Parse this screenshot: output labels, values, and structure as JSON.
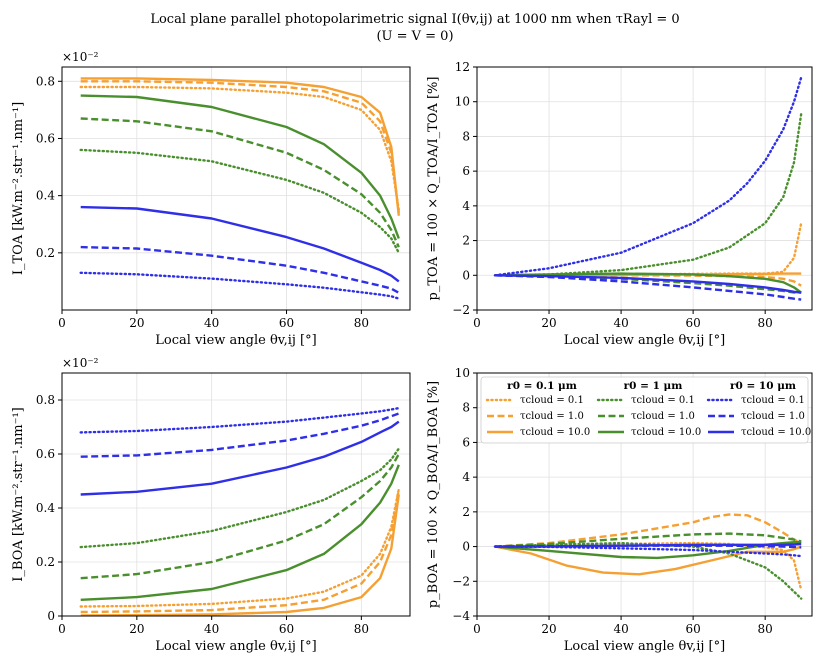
{
  "figure": {
    "title_line1": "Local plane parallel photopolarimetric signal I(θv,ij) at 1000 nm when τRayl = 0",
    "title_line2": "(U = V = 0)"
  },
  "colors": {
    "r0.1": "#f5a033",
    "r1": "#4a8f2e",
    "r10": "#2f2fe8",
    "grid": "#e0e0e0"
  },
  "legend": {
    "headers": [
      "r0 = 0.1 μm",
      "r0 = 1 μm",
      "r0 = 10 μm"
    ],
    "labels": [
      "τcloud = 0.1",
      "τcloud = 1.0",
      "τcloud = 10.0"
    ]
  },
  "chart_data": [
    {
      "id": "I_TOA",
      "type": "line",
      "xlabel": "Local view angle θv,ij [°]",
      "ylabel": "I_TOA [kW.m⁻².str⁻¹.nm⁻¹]",
      "offset_text": "×10⁻²",
      "xlim": [
        0,
        93
      ],
      "ylim": [
        0.0,
        0.85
      ],
      "xticks": [
        0,
        20,
        40,
        60,
        80
      ],
      "yticks": [
        0.2,
        0.4,
        0.6,
        0.8
      ],
      "series": [
        {
          "name": "r0=0.1, τ=0.1",
          "color_key": "r0.1",
          "dash": "dot",
          "x": [
            5,
            20,
            40,
            60,
            70,
            80,
            85,
            88,
            90
          ],
          "y": [
            0.78,
            0.78,
            0.775,
            0.76,
            0.745,
            0.7,
            0.63,
            0.52,
            0.35
          ]
        },
        {
          "name": "r0=0.1, τ=1.0",
          "color_key": "r0.1",
          "dash": "dash",
          "x": [
            5,
            20,
            40,
            60,
            70,
            80,
            85,
            88,
            90
          ],
          "y": [
            0.8,
            0.8,
            0.795,
            0.78,
            0.765,
            0.725,
            0.66,
            0.55,
            0.34
          ]
        },
        {
          "name": "r0=0.1, τ=10.0",
          "color_key": "r0.1",
          "dash": "solid",
          "x": [
            5,
            20,
            40,
            60,
            70,
            80,
            85,
            88,
            90
          ],
          "y": [
            0.81,
            0.81,
            0.805,
            0.795,
            0.78,
            0.745,
            0.69,
            0.57,
            0.33
          ]
        },
        {
          "name": "r0=1, τ=0.1",
          "color_key": "r1",
          "dash": "dot",
          "x": [
            5,
            20,
            40,
            60,
            70,
            80,
            85,
            88,
            90
          ],
          "y": [
            0.56,
            0.55,
            0.52,
            0.455,
            0.41,
            0.34,
            0.29,
            0.25,
            0.2
          ]
        },
        {
          "name": "r0=1, τ=1.0",
          "color_key": "r1",
          "dash": "dash",
          "x": [
            5,
            20,
            40,
            60,
            70,
            80,
            85,
            88,
            90
          ],
          "y": [
            0.67,
            0.66,
            0.625,
            0.55,
            0.49,
            0.405,
            0.34,
            0.28,
            0.22
          ]
        },
        {
          "name": "r0=1, τ=10.0",
          "color_key": "r1",
          "dash": "solid",
          "x": [
            5,
            20,
            40,
            60,
            70,
            80,
            85,
            88,
            90
          ],
          "y": [
            0.75,
            0.745,
            0.71,
            0.64,
            0.58,
            0.48,
            0.4,
            0.32,
            0.25
          ]
        },
        {
          "name": "r0=10, τ=0.1",
          "color_key": "r10",
          "dash": "dot",
          "x": [
            5,
            20,
            40,
            60,
            70,
            80,
            85,
            88,
            90
          ],
          "y": [
            0.13,
            0.125,
            0.11,
            0.09,
            0.078,
            0.062,
            0.054,
            0.048,
            0.04
          ]
        },
        {
          "name": "r0=10, τ=1.0",
          "color_key": "r10",
          "dash": "dash",
          "x": [
            5,
            20,
            40,
            60,
            70,
            80,
            85,
            88,
            90
          ],
          "y": [
            0.22,
            0.215,
            0.19,
            0.155,
            0.13,
            0.1,
            0.085,
            0.075,
            0.06
          ]
        },
        {
          "name": "r0=10, τ=10.0",
          "color_key": "r10",
          "dash": "solid",
          "x": [
            5,
            20,
            40,
            60,
            70,
            80,
            85,
            88,
            90
          ],
          "y": [
            0.36,
            0.355,
            0.32,
            0.255,
            0.215,
            0.165,
            0.14,
            0.12,
            0.1
          ]
        }
      ]
    },
    {
      "id": "p_TOA",
      "type": "line",
      "xlabel": "Local view angle θv,ij [°]",
      "ylabel": "p_TOA = 100 × Q_TOA/I_TOA [%]",
      "xlim": [
        0,
        93
      ],
      "ylim": [
        -2,
        12
      ],
      "xticks": [
        0,
        20,
        40,
        60,
        80
      ],
      "yticks": [
        -2,
        0,
        2,
        4,
        6,
        8,
        10,
        12
      ],
      "series": [
        {
          "name": "r0=0.1, τ=0.1",
          "color_key": "r0.1",
          "dash": "dot",
          "x": [
            5,
            20,
            40,
            60,
            70,
            80,
            85,
            88,
            90
          ],
          "y": [
            0,
            0.02,
            0.05,
            0.08,
            0.1,
            0.1,
            0.2,
            1.0,
            3.0
          ]
        },
        {
          "name": "r0=0.1, τ=1.0",
          "color_key": "r0.1",
          "dash": "dash",
          "x": [
            5,
            20,
            40,
            60,
            70,
            80,
            85,
            88,
            90
          ],
          "y": [
            0,
            0,
            0,
            -0.02,
            -0.05,
            -0.1,
            -0.2,
            -0.35,
            -0.6
          ]
        },
        {
          "name": "r0=0.1, τ=10.0",
          "color_key": "r0.1",
          "dash": "solid",
          "x": [
            5,
            20,
            40,
            60,
            70,
            80,
            85,
            88,
            90
          ],
          "y": [
            0,
            0,
            0.03,
            0.05,
            0.06,
            0.08,
            0.1,
            0.1,
            0.1
          ]
        },
        {
          "name": "r0=1, τ=0.1",
          "color_key": "r1",
          "dash": "dot",
          "x": [
            5,
            20,
            40,
            60,
            70,
            80,
            85,
            88,
            90
          ],
          "y": [
            0,
            0.05,
            0.3,
            0.9,
            1.6,
            3.0,
            4.5,
            6.5,
            9.3
          ]
        },
        {
          "name": "r0=1, τ=1.0",
          "color_key": "r1",
          "dash": "dash",
          "x": [
            5,
            20,
            40,
            60,
            70,
            80,
            85,
            88,
            90
          ],
          "y": [
            0,
            -0.05,
            -0.2,
            -0.45,
            -0.6,
            -0.8,
            -0.9,
            -1.0,
            -1.0
          ]
        },
        {
          "name": "r0=1, τ=10.0",
          "color_key": "r1",
          "dash": "solid",
          "x": [
            5,
            20,
            40,
            60,
            70,
            80,
            85,
            88,
            90
          ],
          "y": [
            0,
            0.05,
            0.1,
            0.05,
            -0.05,
            -0.2,
            -0.4,
            -0.7,
            -1.0
          ]
        },
        {
          "name": "r0=10, τ=0.1",
          "color_key": "r10",
          "dash": "dot",
          "x": [
            5,
            20,
            40,
            60,
            70,
            75,
            80,
            85,
            88,
            90
          ],
          "y": [
            0,
            0.4,
            1.3,
            3.0,
            4.3,
            5.3,
            6.6,
            8.4,
            10.0,
            11.4
          ]
        },
        {
          "name": "r0=10, τ=1.0",
          "color_key": "r10",
          "dash": "dash",
          "x": [
            5,
            20,
            40,
            60,
            70,
            80,
            85,
            88,
            90
          ],
          "y": [
            0,
            -0.1,
            -0.35,
            -0.7,
            -0.9,
            -1.1,
            -1.25,
            -1.35,
            -1.4
          ]
        },
        {
          "name": "r0=10, τ=10.0",
          "color_key": "r10",
          "dash": "solid",
          "x": [
            5,
            20,
            40,
            60,
            70,
            80,
            85,
            88,
            90
          ],
          "y": [
            0,
            -0.05,
            -0.15,
            -0.35,
            -0.5,
            -0.7,
            -0.85,
            -0.95,
            -1.0
          ]
        }
      ]
    },
    {
      "id": "I_BOA",
      "type": "line",
      "xlabel": "Local view angle θv,ij [°]",
      "ylabel": "I_BOA [kW.m⁻².str⁻¹.nm⁻¹]",
      "offset_text": "×10⁻²",
      "xlim": [
        0,
        93
      ],
      "ylim": [
        0.0,
        0.9
      ],
      "xticks": [
        0,
        20,
        40,
        60,
        80
      ],
      "yticks": [
        0.0,
        0.2,
        0.4,
        0.6,
        0.8
      ],
      "series": [
        {
          "name": "r0=0.1, τ=0.1",
          "color_key": "r0.1",
          "dash": "dot",
          "x": [
            5,
            20,
            40,
            60,
            70,
            80,
            85,
            88,
            90
          ],
          "y": [
            0.035,
            0.037,
            0.045,
            0.065,
            0.09,
            0.15,
            0.23,
            0.33,
            0.47
          ]
        },
        {
          "name": "r0=0.1, τ=1.0",
          "color_key": "r0.1",
          "dash": "dash",
          "x": [
            5,
            20,
            40,
            60,
            70,
            80,
            85,
            88,
            90
          ],
          "y": [
            0.015,
            0.017,
            0.022,
            0.04,
            0.06,
            0.12,
            0.2,
            0.3,
            0.47
          ]
        },
        {
          "name": "r0=0.1, τ=10.0",
          "color_key": "r0.1",
          "dash": "solid",
          "x": [
            5,
            20,
            40,
            60,
            70,
            80,
            85,
            88,
            90
          ],
          "y": [
            0.002,
            0.003,
            0.006,
            0.015,
            0.03,
            0.07,
            0.14,
            0.25,
            0.45
          ]
        },
        {
          "name": "r0=1, τ=0.1",
          "color_key": "r1",
          "dash": "dot",
          "x": [
            5,
            20,
            40,
            60,
            70,
            80,
            85,
            88,
            90
          ],
          "y": [
            0.255,
            0.27,
            0.315,
            0.385,
            0.43,
            0.5,
            0.54,
            0.58,
            0.62
          ]
        },
        {
          "name": "r0=1, τ=1.0",
          "color_key": "r1",
          "dash": "dash",
          "x": [
            5,
            20,
            40,
            60,
            70,
            80,
            85,
            88,
            90
          ],
          "y": [
            0.14,
            0.155,
            0.2,
            0.28,
            0.34,
            0.44,
            0.5,
            0.55,
            0.6
          ]
        },
        {
          "name": "r0=1, τ=10.0",
          "color_key": "r1",
          "dash": "solid",
          "x": [
            5,
            20,
            40,
            60,
            70,
            80,
            85,
            88,
            90
          ],
          "y": [
            0.06,
            0.07,
            0.1,
            0.17,
            0.23,
            0.34,
            0.42,
            0.49,
            0.56
          ]
        },
        {
          "name": "r0=10, τ=0.1",
          "color_key": "r10",
          "dash": "dot",
          "x": [
            5,
            20,
            40,
            60,
            70,
            80,
            85,
            88,
            90
          ],
          "y": [
            0.68,
            0.685,
            0.7,
            0.72,
            0.735,
            0.75,
            0.758,
            0.765,
            0.77
          ]
        },
        {
          "name": "r0=10, τ=1.0",
          "color_key": "r10",
          "dash": "dash",
          "x": [
            5,
            20,
            40,
            60,
            70,
            80,
            85,
            88,
            90
          ],
          "y": [
            0.59,
            0.595,
            0.615,
            0.65,
            0.675,
            0.705,
            0.725,
            0.74,
            0.75
          ]
        },
        {
          "name": "r0=10, τ=10.0",
          "color_key": "r10",
          "dash": "solid",
          "x": [
            5,
            20,
            40,
            60,
            70,
            80,
            85,
            88,
            90
          ],
          "y": [
            0.45,
            0.46,
            0.49,
            0.55,
            0.59,
            0.645,
            0.68,
            0.7,
            0.72
          ]
        }
      ]
    },
    {
      "id": "p_BOA",
      "type": "line",
      "xlabel": "Local view angle θv,ij [°]",
      "ylabel": "p_BOA = 100 × Q_BOA/I_BOA [%]",
      "xlim": [
        0,
        93
      ],
      "ylim": [
        -4,
        10
      ],
      "xticks": [
        0,
        20,
        40,
        60,
        80
      ],
      "yticks": [
        -4,
        -2,
        0,
        2,
        4,
        6,
        8,
        10
      ],
      "series": [
        {
          "name": "r0=0.1, τ=0.1",
          "color_key": "r0.1",
          "dash": "dot",
          "x": [
            5,
            20,
            40,
            60,
            70,
            80,
            85,
            88,
            90
          ],
          "y": [
            0,
            0.05,
            0.15,
            0.2,
            0.15,
            -0.05,
            -0.2,
            -0.8,
            -2.5
          ]
        },
        {
          "name": "r0=0.1, τ=1.0",
          "color_key": "r0.1",
          "dash": "dash",
          "x": [
            5,
            20,
            40,
            60,
            65,
            70,
            75,
            80,
            85,
            88,
            90
          ],
          "y": [
            0,
            0.2,
            0.7,
            1.4,
            1.7,
            1.85,
            1.8,
            1.4,
            0.8,
            0.4,
            0.2
          ]
        },
        {
          "name": "r0=0.1, τ=10.0",
          "color_key": "r0.1",
          "dash": "solid",
          "x": [
            5,
            15,
            25,
            35,
            45,
            55,
            65,
            75,
            85,
            88,
            90
          ],
          "y": [
            0,
            -0.4,
            -1.1,
            -1.5,
            -1.6,
            -1.3,
            -0.8,
            -0.3,
            -0.3,
            -0.15,
            0
          ]
        },
        {
          "name": "r0=1, τ=0.1",
          "color_key": "r1",
          "dash": "dot",
          "x": [
            5,
            20,
            40,
            60,
            70,
            80,
            85,
            88,
            90
          ],
          "y": [
            0,
            0.1,
            0.2,
            0.0,
            -0.4,
            -1.2,
            -2.0,
            -2.6,
            -3.0
          ]
        },
        {
          "name": "r0=1, τ=1.0",
          "color_key": "r1",
          "dash": "dash",
          "x": [
            5,
            20,
            40,
            60,
            70,
            80,
            85,
            88,
            90
          ],
          "y": [
            0,
            0.15,
            0.45,
            0.7,
            0.75,
            0.65,
            0.5,
            0.4,
            0.3
          ]
        },
        {
          "name": "r0=1, τ=10.0",
          "color_key": "r1",
          "dash": "solid",
          "x": [
            5,
            20,
            40,
            50,
            60,
            70,
            80,
            85,
            88,
            90
          ],
          "y": [
            0,
            -0.25,
            -0.6,
            -0.65,
            -0.5,
            -0.25,
            0.1,
            0.2,
            0.25,
            0.25
          ]
        },
        {
          "name": "r0=10, τ=0.1",
          "color_key": "r10",
          "dash": "dot",
          "x": [
            5,
            20,
            40,
            60,
            70,
            80,
            85,
            88,
            90
          ],
          "y": [
            0,
            -0.02,
            -0.1,
            -0.2,
            -0.3,
            -0.4,
            -0.45,
            -0.5,
            -0.55
          ]
        },
        {
          "name": "r0=10, τ=1.0",
          "color_key": "r10",
          "dash": "dash",
          "x": [
            5,
            20,
            40,
            60,
            70,
            80,
            85,
            88,
            90
          ],
          "y": [
            0,
            0.02,
            0.05,
            0.05,
            0.05,
            0.03,
            0.0,
            -0.02,
            -0.05
          ]
        },
        {
          "name": "r0=10, τ=10.0",
          "color_key": "r10",
          "dash": "solid",
          "x": [
            5,
            20,
            40,
            60,
            70,
            80,
            85,
            88,
            90
          ],
          "y": [
            0,
            0,
            0.05,
            0.1,
            0.1,
            0.1,
            0.1,
            0.12,
            0.15
          ]
        }
      ]
    }
  ]
}
